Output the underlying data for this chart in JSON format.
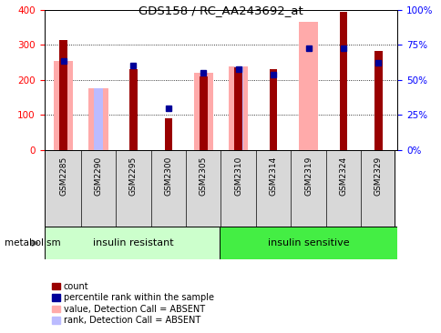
{
  "title": "GDS158 / RC_AA243692_at",
  "samples": [
    "GSM2285",
    "GSM2290",
    "GSM2295",
    "GSM2300",
    "GSM2305",
    "GSM2310",
    "GSM2314",
    "GSM2319",
    "GSM2324",
    "GSM2329"
  ],
  "group1_label": "insulin resistant",
  "group2_label": "insulin sensitive",
  "metabolism_label": "metabolism",
  "red_bars": [
    315,
    0,
    230,
    90,
    210,
    235,
    230,
    0,
    395,
    282
  ],
  "pink_bars": [
    255,
    175,
    0,
    0,
    220,
    238,
    0,
    365,
    0,
    0
  ],
  "blue_squares": [
    255,
    0,
    240,
    120,
    220,
    232,
    215,
    290,
    290,
    248
  ],
  "lightblue_bars": [
    255,
    175,
    0,
    0,
    0,
    238,
    0,
    0,
    0,
    248
  ],
  "ylim_left": [
    0,
    400
  ],
  "yticks_left": [
    0,
    100,
    200,
    300,
    400
  ],
  "yticks_right": [
    0,
    25,
    50,
    75,
    100
  ],
  "yticklabels_right": [
    "0%",
    "25%",
    "50%",
    "75%",
    "100%"
  ],
  "red_color": "#990000",
  "pink_color": "#ffaaaa",
  "blue_color": "#000099",
  "lightblue_color": "#bbbbff",
  "group1_color": "#ccffcc",
  "group2_color": "#44ee44",
  "sample_box_color": "#d8d8d8",
  "legend_items": [
    {
      "label": "count",
      "color": "#990000"
    },
    {
      "label": "percentile rank within the sample",
      "color": "#000099"
    },
    {
      "label": "value, Detection Call = ABSENT",
      "color": "#ffaaaa"
    },
    {
      "label": "rank, Detection Call = ABSENT",
      "color": "#bbbbff"
    }
  ]
}
